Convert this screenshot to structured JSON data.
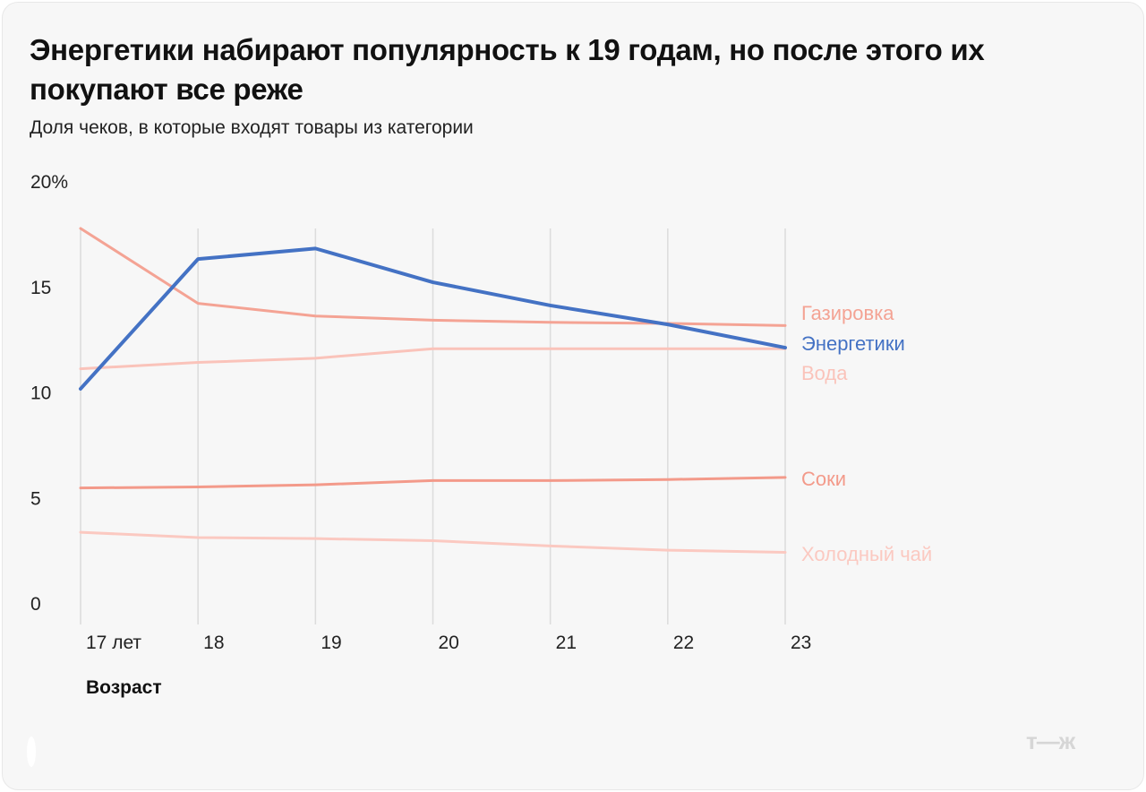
{
  "title": "Энергетики набирают популярность к 19 годам, но после этого их покупают все реже",
  "subtitle": "Доля чеков, в которые входят товары из категории",
  "logo": "т—ж",
  "chart_data": {
    "type": "line",
    "title": "Энергетики набирают популярность к 19 годам, но после этого их покупают все реже",
    "subtitle": "Доля чеков, в которые входят товары из категории",
    "xlabel": "Возраст",
    "ylabel": "",
    "x": [
      17,
      18,
      19,
      20,
      21,
      22,
      23
    ],
    "x_tick_labels": [
      "17 лет",
      "18",
      "19",
      "20",
      "21",
      "22",
      "23"
    ],
    "y_tick_labels": [
      "0",
      "5",
      "10",
      "15",
      "20%"
    ],
    "y_ticks": [
      0,
      5,
      10,
      15,
      20
    ],
    "ylim": [
      0,
      20
    ],
    "grid": "vertical",
    "legend": "direct labels at right end",
    "series": [
      {
        "name": "Газировка",
        "color": "#f4a394",
        "values": [
          17.75,
          14.2,
          13.6,
          13.4,
          13.3,
          13.25,
          13.15
        ]
      },
      {
        "name": "Энергетики",
        "color": "#4472c4",
        "values": [
          10.15,
          16.3,
          16.8,
          15.2,
          14.1,
          13.2,
          12.1
        ]
      },
      {
        "name": "Вода",
        "color": "#fac3ba",
        "values": [
          11.1,
          11.4,
          11.6,
          12.05,
          12.05,
          12.05,
          12.05
        ]
      },
      {
        "name": "Соки",
        "color": "#f39a8a",
        "values": [
          5.45,
          5.5,
          5.6,
          5.8,
          5.8,
          5.85,
          5.95
        ]
      },
      {
        "name": "Холодный чай",
        "color": "#fbc9c1",
        "values": [
          3.35,
          3.1,
          3.05,
          2.95,
          2.7,
          2.5,
          2.4
        ]
      }
    ]
  }
}
